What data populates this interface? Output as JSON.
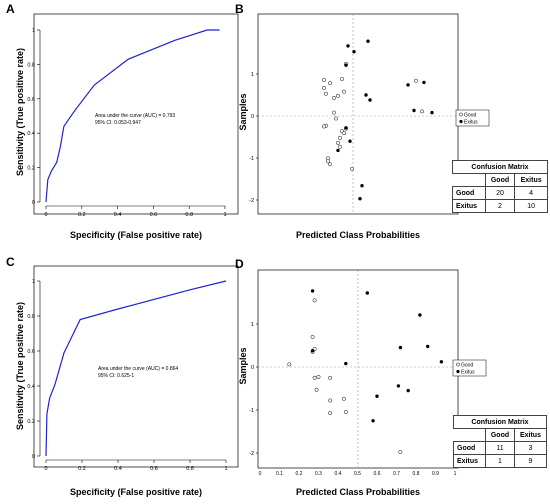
{
  "panels": {
    "A": {
      "letter": "A",
      "chart_data": {
        "type": "line",
        "xlabel": "Specificity (False positive rate)",
        "ylabel": "Sensitivity (True positive rate)",
        "xlim": [
          0,
          1
        ],
        "ylim": [
          0,
          1
        ],
        "ticks": [
          "0",
          "0.2",
          "0.4",
          "0.6",
          "0.8",
          "1"
        ],
        "points": [
          [
            0,
            0
          ],
          [
            0.01,
            0.13
          ],
          [
            0.03,
            0.18
          ],
          [
            0.06,
            0.23
          ],
          [
            0.08,
            0.32
          ],
          [
            0.1,
            0.44
          ],
          [
            0.16,
            0.53
          ],
          [
            0.27,
            0.68
          ],
          [
            0.46,
            0.83
          ],
          [
            0.72,
            0.94
          ],
          [
            0.9,
            1.0
          ],
          [
            0.97,
            1.0
          ]
        ],
        "annotation": [
          "Area under the curve (AUC) = 0.793",
          "95% CI: 0.053-0.947"
        ]
      }
    },
    "B": {
      "letter": "B",
      "chart_data": {
        "type": "scatter",
        "xlabel": "Predicted Class Probabilities",
        "ylabel": "Samples",
        "yticks": [
          "1",
          "0",
          "-1",
          "-2"
        ],
        "legend": [
          "Good",
          "Exitus"
        ],
        "series": [
          {
            "name": "Good",
            "points": [
              [
                0.33,
                0.86
              ],
              [
                0.33,
                0.67
              ],
              [
                0.34,
                0.53
              ],
              [
                0.36,
                0.78
              ],
              [
                0.38,
                0.43
              ],
              [
                0.4,
                0.48
              ],
              [
                0.42,
                0.88
              ],
              [
                0.44,
                1.24
              ],
              [
                0.43,
                0.58
              ],
              [
                0.4,
                -0.64
              ],
              [
                0.41,
                -0.73
              ],
              [
                0.41,
                -0.52
              ],
              [
                0.42,
                -0.36
              ],
              [
                0.43,
                -0.41
              ],
              [
                0.44,
                -0.3
              ],
              [
                0.35,
                -1.01
              ],
              [
                0.35,
                -1.08
              ],
              [
                0.36,
                -1.15
              ],
              [
                0.34,
                -0.23
              ],
              [
                0.33,
                -0.25
              ],
              [
                0.47,
                -1.26
              ],
              [
                0.79,
                0.84
              ],
              [
                0.82,
                0.11
              ],
              [
                0.38,
                0.08
              ],
              [
                0.39,
                -0.06
              ]
            ]
          },
          {
            "name": "Exitus",
            "points": [
              [
                0.45,
                1.67
              ],
              [
                0.48,
                1.53
              ],
              [
                0.55,
                1.78
              ],
              [
                0.44,
                1.21
              ],
              [
                0.54,
                0.5
              ],
              [
                0.56,
                0.38
              ],
              [
                0.75,
                0.74
              ],
              [
                0.83,
                0.8
              ],
              [
                0.78,
                0.13
              ],
              [
                0.87,
                0.08
              ],
              [
                0.44,
                -0.28
              ],
              [
                0.46,
                -0.6
              ],
              [
                0.52,
                -1.66
              ],
              [
                0.51,
                -1.97
              ],
              [
                0.4,
                -0.82
              ]
            ]
          }
        ]
      },
      "matrix": {
        "title": "Confusion Matrix",
        "cols": [
          "Good",
          "Exitus"
        ],
        "rows": [
          {
            "label": "Good",
            "values": [
              "20",
              "4"
            ]
          },
          {
            "label": "Exitus",
            "values": [
              "2",
              "10"
            ]
          }
        ]
      }
    },
    "C": {
      "letter": "C",
      "chart_data": {
        "type": "line",
        "xlabel": "Specificity (False positive rate)",
        "ylabel": "Sensitivity (True positive rate)",
        "xlim": [
          0,
          1
        ],
        "ylim": [
          0,
          1
        ],
        "ticks": [
          "0",
          "0.2",
          "0.4",
          "0.6",
          "0.8",
          "1"
        ],
        "points": [
          [
            0,
            0
          ],
          [
            0.005,
            0.24
          ],
          [
            0.02,
            0.33
          ],
          [
            0.05,
            0.41
          ],
          [
            0.1,
            0.59
          ],
          [
            0.19,
            0.78
          ],
          [
            0.4,
            0.84
          ],
          [
            0.8,
            0.95
          ],
          [
            1,
            1
          ]
        ],
        "annotation": [
          "Area under the curve (AUC) = 0.864",
          "95% CI: 0.625-1"
        ]
      }
    },
    "D": {
      "letter": "D",
      "chart_data": {
        "type": "scatter",
        "xlabel": "Predicted Class Probabilities",
        "ylabel": "Samples",
        "xticks": [
          "0",
          "0.1",
          "0.2",
          "0.3",
          "0.4",
          "0.5",
          "0.6",
          "0.7",
          "0.8",
          "0.9",
          "1"
        ],
        "yticks": [
          "1",
          "0",
          "-1",
          "-2"
        ],
        "legend": [
          "Good",
          "Exitus"
        ],
        "series": [
          {
            "name": "Good",
            "points": [
              [
                0.28,
                1.55
              ],
              [
                0.27,
                0.7
              ],
              [
                0.28,
                0.42
              ],
              [
                0.27,
                0.35
              ],
              [
                0.15,
                0.06
              ],
              [
                0.28,
                -0.25
              ],
              [
                0.3,
                -0.23
              ],
              [
                0.36,
                -0.25
              ],
              [
                0.29,
                -0.53
              ],
              [
                0.36,
                -0.78
              ],
              [
                0.36,
                -1.07
              ],
              [
                0.43,
                -0.74
              ],
              [
                0.44,
                -1.05
              ],
              [
                0.72,
                -1.98
              ]
            ]
          },
          {
            "name": "Exitus",
            "points": [
              [
                0.27,
                1.77
              ],
              [
                0.27,
                0.38
              ],
              [
                0.55,
                1.72
              ],
              [
                0.82,
                1.21
              ],
              [
                0.72,
                0.45
              ],
              [
                0.86,
                0.48
              ],
              [
                0.93,
                0.12
              ],
              [
                0.44,
                0.08
              ],
              [
                0.71,
                -0.44
              ],
              [
                0.76,
                -0.55
              ],
              [
                0.6,
                -0.68
              ],
              [
                0.58,
                -1.25
              ]
            ]
          }
        ]
      },
      "matrix": {
        "title": "Confusion Matrix",
        "cols": [
          "Good",
          "Exitus"
        ],
        "rows": [
          {
            "label": "Good",
            "values": [
              "11",
              "3"
            ]
          },
          {
            "label": "Exitus",
            "values": [
              "1",
              "9"
            ]
          }
        ]
      }
    }
  }
}
